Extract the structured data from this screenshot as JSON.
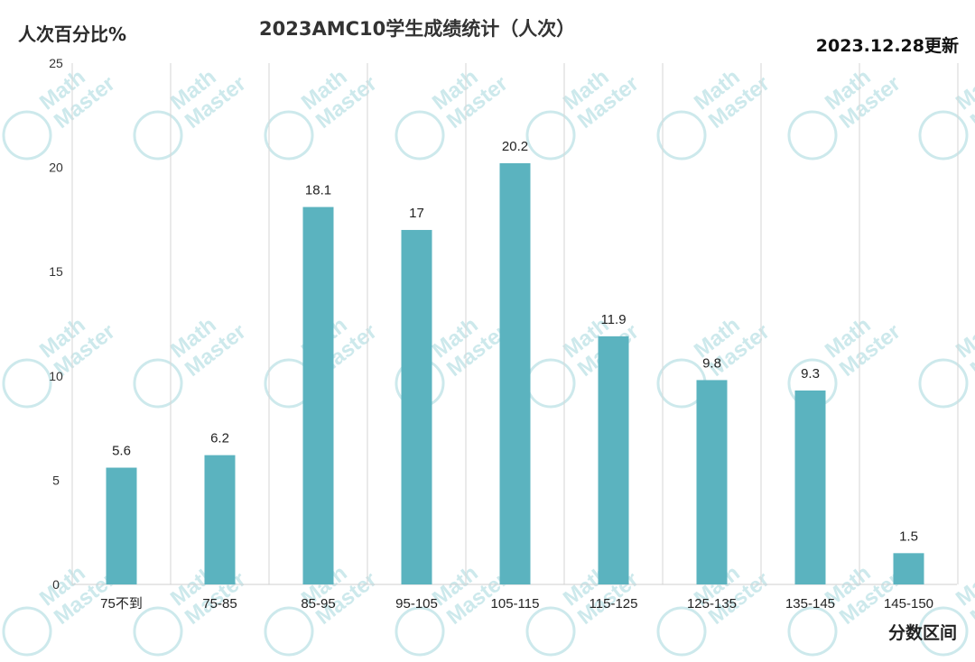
{
  "header": {
    "ylabel": "人次百分比%",
    "title": "2023AMC10学生成绩统计（人次）",
    "update": "2023.12.28更新",
    "xlabel": "分数区间"
  },
  "watermark": {
    "line1": "Math",
    "line2": "Master"
  },
  "colors": {
    "bar": "#5bb3bf",
    "grid": "#d6d6d6",
    "watermark": "#cde9ec"
  },
  "chart_data": {
    "type": "bar",
    "categories": [
      "75不到",
      "75-85",
      "85-95",
      "95-105",
      "105-115",
      "115-125",
      "125-135",
      "135-145",
      "145-150"
    ],
    "values": [
      5.6,
      6.2,
      18.1,
      17,
      20.2,
      11.9,
      9.8,
      9.3,
      1.5
    ],
    "data_labels": [
      "5.6",
      "6.2",
      "18.1",
      "17",
      "20.2",
      "11.9",
      "9.8",
      "9.3",
      "1.5"
    ],
    "yticks": [
      0,
      5,
      10,
      15,
      20,
      25
    ],
    "ylim": [
      0,
      25
    ],
    "grid": "vertical",
    "legend": "none"
  }
}
